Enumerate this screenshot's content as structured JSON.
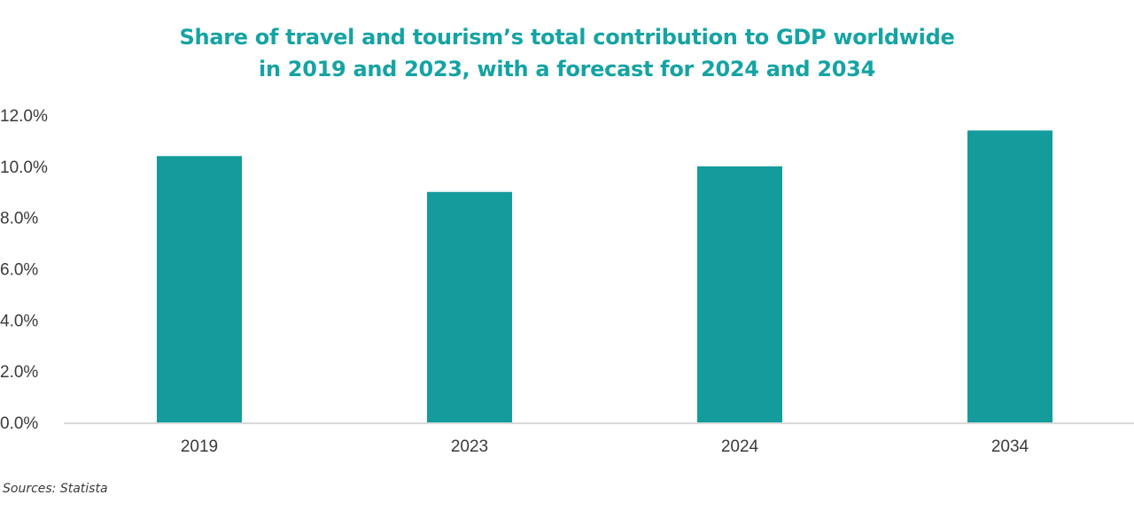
{
  "colors": {
    "title": "#16a3a3",
    "bar": "#149b9b",
    "axis": "#d9d9d9",
    "text": "#3a3a3a"
  },
  "chart_data": {
    "type": "bar",
    "title_lines": [
      "Share of travel and tourism’s total contribution to GDP worldwide",
      "in 2019 and 2023, with a forecast for 2024 and 2034"
    ],
    "categories": [
      "2019",
      "2023",
      "2024",
      "2034"
    ],
    "values": [
      10.4,
      9.0,
      10.0,
      11.4
    ],
    "value_unit": "%",
    "y_ticks": [
      "0.0%",
      "2.0%",
      "4.0%",
      "6.0%",
      "8.0%",
      "10.0%",
      "12.0%"
    ],
    "ylim": [
      0,
      12
    ],
    "xlabel": "",
    "ylabel": "",
    "grid": false,
    "legend": "none"
  },
  "footer": {
    "source": "Sources: Statista"
  }
}
